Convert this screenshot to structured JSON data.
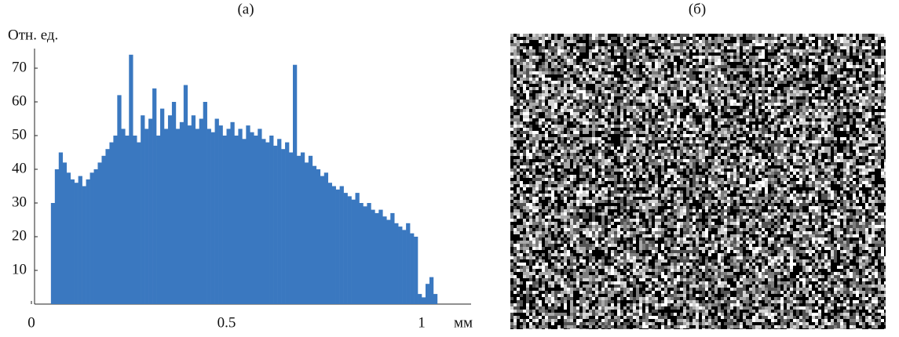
{
  "chart_data": [
    {
      "type": "histogram",
      "title": "(а)",
      "y_label": "Отн. ед.",
      "x_label": "мм",
      "color": "#3a78c0",
      "bins": [
        0.05,
        0.06,
        0.07,
        0.08,
        0.09,
        0.1,
        0.11,
        0.12,
        0.13,
        0.14,
        0.15,
        0.16,
        0.17,
        0.18,
        0.19,
        0.2,
        0.21,
        0.22,
        0.23,
        0.24,
        0.25,
        0.26,
        0.27,
        0.28,
        0.29,
        0.3,
        0.31,
        0.32,
        0.33,
        0.34,
        0.35,
        0.36,
        0.37,
        0.38,
        0.39,
        0.4,
        0.41,
        0.42,
        0.43,
        0.44,
        0.45,
        0.46,
        0.47,
        0.48,
        0.49,
        0.5,
        0.51,
        0.52,
        0.53,
        0.54,
        0.55,
        0.56,
        0.57,
        0.58,
        0.59,
        0.6,
        0.61,
        0.62,
        0.63,
        0.64,
        0.65,
        0.66,
        0.67,
        0.68,
        0.69,
        0.7,
        0.71,
        0.72,
        0.73,
        0.74,
        0.75,
        0.76,
        0.77,
        0.78,
        0.79,
        0.8,
        0.81,
        0.82,
        0.83,
        0.84,
        0.85,
        0.86,
        0.87,
        0.88,
        0.89,
        0.9,
        0.91,
        0.92,
        0.93,
        0.94,
        0.95,
        0.96,
        0.97,
        0.98,
        0.99,
        1.0,
        1.01,
        1.02,
        1.03,
        1.04
      ],
      "values": [
        30,
        40,
        45,
        42,
        39,
        37,
        36,
        38,
        35,
        37,
        39,
        40,
        42,
        44,
        46,
        48,
        50,
        62,
        52,
        50,
        74,
        50,
        48,
        56,
        52,
        55,
        64,
        50,
        58,
        52,
        56,
        60,
        52,
        54,
        65,
        53,
        56,
        52,
        55,
        60,
        52,
        51,
        55,
        53,
        50,
        52,
        54,
        50,
        52,
        49,
        53,
        51,
        50,
        52,
        49,
        48,
        50,
        47,
        49,
        46,
        48,
        45,
        71,
        44,
        45,
        42,
        44,
        41,
        40,
        38,
        39,
        36,
        35,
        34,
        35,
        33,
        32,
        31,
        33,
        30,
        29,
        30,
        28,
        27,
        28,
        26,
        25,
        27,
        24,
        23,
        22,
        24,
        21,
        20,
        3,
        2,
        6,
        8,
        3
      ],
      "xlim": [
        0,
        1.13
      ],
      "ylim": [
        0,
        75
      ],
      "xticks": [
        0,
        0.5,
        1
      ],
      "yticks": [
        10,
        20,
        30,
        40,
        50,
        60,
        70
      ]
    },
    {
      "type": "image",
      "title": "(б)"
    }
  ]
}
